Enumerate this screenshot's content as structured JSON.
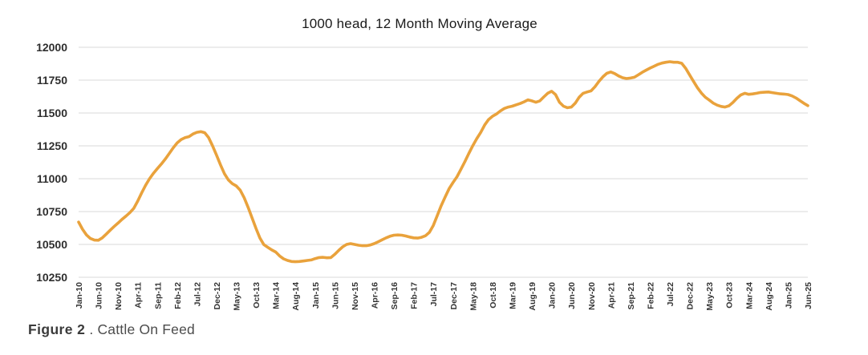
{
  "caption": {
    "label": "Figure 2",
    "separator": " . ",
    "text": "Cattle On Feed"
  },
  "chart_data": {
    "type": "line",
    "title": "1000 head, 12 Month Moving Average",
    "series_name": "Cattle on feed, 12-month moving average (1000 head)",
    "legend": "none",
    "grid": "horizontal-only",
    "ylim": [
      10250,
      12000
    ],
    "y_ticks": [
      10250,
      10500,
      10750,
      11000,
      11250,
      11500,
      11750,
      12000
    ],
    "x_tick_interval": 5,
    "x_tick_labels": [
      "Jan-10",
      "Jun-10",
      "Nov-10",
      "Apr-11",
      "Sep-11",
      "Feb-12",
      "Jul-12",
      "Dec-12",
      "May-13",
      "Oct-13",
      "Mar-14",
      "Aug-14",
      "Jan-15",
      "Jun-15",
      "Nov-15",
      "Apr-16",
      "Sep-16",
      "Feb-17",
      "Jul-17",
      "Dec-17",
      "May-18",
      "Oct-18",
      "Mar-19",
      "Aug-19",
      "Jan-20",
      "Jun-20",
      "Nov-20",
      "Apr-21",
      "Sep-21",
      "Feb-22",
      "Jul-22",
      "Dec-22",
      "May-23",
      "Oct-23",
      "Mar-24",
      "Aug-24",
      "Jan-25",
      "Jun-25"
    ],
    "x_start": "Jan-10",
    "x_end": "Jun-25",
    "values": [
      10670,
      10615,
      10572,
      10545,
      10533,
      10532,
      10550,
      10578,
      10608,
      10636,
      10662,
      10690,
      10715,
      10742,
      10775,
      10830,
      10892,
      10950,
      11000,
      11042,
      11078,
      11112,
      11150,
      11192,
      11235,
      11272,
      11298,
      11312,
      11320,
      11340,
      11353,
      11358,
      11350,
      11312,
      11248,
      11178,
      11105,
      11038,
      10990,
      10962,
      10945,
      10912,
      10855,
      10782,
      10702,
      10622,
      10548,
      10498,
      10478,
      10458,
      10442,
      10412,
      10390,
      10378,
      10370,
      10368,
      10370,
      10374,
      10378,
      10382,
      10392,
      10400,
      10402,
      10398,
      10400,
      10425,
      10455,
      10482,
      10500,
      10506,
      10500,
      10494,
      10490,
      10490,
      10496,
      10506,
      10520,
      10535,
      10550,
      10562,
      10570,
      10572,
      10570,
      10564,
      10556,
      10550,
      10548,
      10554,
      10566,
      10592,
      10645,
      10720,
      10795,
      10862,
      10925,
      10972,
      11015,
      11072,
      11130,
      11192,
      11252,
      11305,
      11352,
      11408,
      11450,
      11475,
      11492,
      11515,
      11535,
      11545,
      11552,
      11562,
      11572,
      11585,
      11600,
      11592,
      11582,
      11592,
      11622,
      11650,
      11665,
      11640,
      11582,
      11552,
      11540,
      11545,
      11575,
      11620,
      11650,
      11660,
      11668,
      11700,
      11740,
      11775,
      11802,
      11812,
      11800,
      11782,
      11768,
      11762,
      11766,
      11772,
      11790,
      11810,
      11826,
      11842,
      11856,
      11870,
      11880,
      11886,
      11890,
      11886,
      11886,
      11878,
      11840,
      11790,
      11740,
      11692,
      11652,
      11620,
      11598,
      11575,
      11560,
      11550,
      11545,
      11555,
      11580,
      11612,
      11638,
      11650,
      11642,
      11645,
      11650,
      11656,
      11658,
      11660,
      11655,
      11650,
      11646,
      11644,
      11640,
      11630,
      11614,
      11594,
      11574,
      11556
    ],
    "line_color": "#E9A23C",
    "gridline_color": "#D9D9D9",
    "axis_label_color": "#2e2e2e"
  }
}
